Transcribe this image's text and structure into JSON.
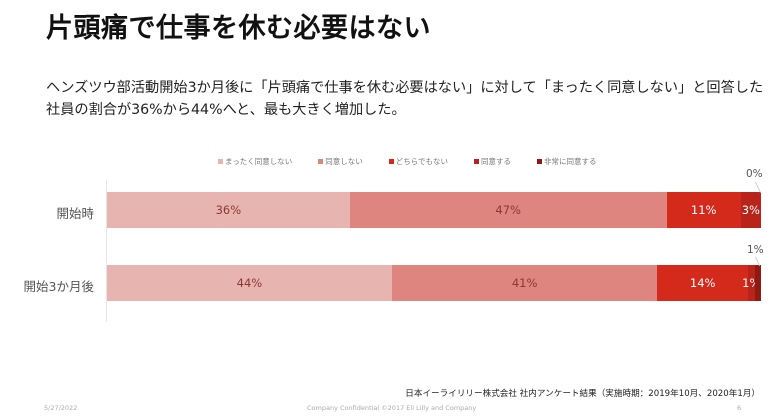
{
  "slide": {
    "title": "片頭痛で仕事を休む必要はない",
    "summary": "ヘンズツウ部活動開始3か月後に「片頭痛で仕事を休む必要はない」に対して「まったく同意しない」と回答した社員の割合が36%から44%へと、最も大きく増加した。",
    "source": "日本イーライリリー株式会社 社内アンケート結果（実施時期：2019年10月、2020年1月）",
    "footer": {
      "date": "5/27/2022",
      "confidential": "Company Confidential  ©2017 Eli Lilly and Company",
      "page": "6"
    }
  },
  "colors": {
    "strongly_disagree": "#e8b4b0",
    "disagree": "#de8580",
    "neutral": "#d42a1c",
    "agree": "#b8231a",
    "strongly_agree": "#8e1a12"
  },
  "legend": [
    {
      "label": "まったく同意しない",
      "color": "#e8b4b0"
    },
    {
      "label": "同意しない",
      "color": "#de8580"
    },
    {
      "label": "どちらでもない",
      "color": "#d42a1c"
    },
    {
      "label": "同意する",
      "color": "#b8231a"
    },
    {
      "label": "非常に同意する",
      "color": "#8e1a12"
    }
  ],
  "rows": [
    {
      "label": "開始時",
      "values": [
        36,
        47,
        11,
        3,
        0
      ],
      "labels": [
        "36%",
        "47%",
        "11%",
        "3%",
        "0%"
      ]
    },
    {
      "label": "開始3か月後",
      "values": [
        44,
        41,
        14,
        1,
        1
      ],
      "labels": [
        "44%",
        "41%",
        "14%",
        "1%",
        "1%"
      ]
    }
  ],
  "chart_data": {
    "type": "bar",
    "orientation": "horizontal",
    "stacked": true,
    "normalized_100": true,
    "title": "片頭痛で仕事を休む必要はない",
    "categories": [
      "開始時",
      "開始3か月後"
    ],
    "series": [
      {
        "name": "まったく同意しない",
        "values": [
          36,
          44
        ],
        "color": "#e8b4b0"
      },
      {
        "name": "同意しない",
        "values": [
          47,
          41
        ],
        "color": "#de8580"
      },
      {
        "name": "どちらでもない",
        "values": [
          11,
          14
        ],
        "color": "#d42a1c"
      },
      {
        "name": "同意する",
        "values": [
          3,
          1
        ],
        "color": "#b8231a"
      },
      {
        "name": "非常に同意する",
        "values": [
          0,
          1
        ],
        "color": "#8e1a12"
      }
    ],
    "xlabel": "",
    "ylabel": "",
    "xlim": [
      0,
      100
    ],
    "grid": false,
    "legend_position": "top",
    "data_labels": true,
    "value_unit": "%"
  }
}
